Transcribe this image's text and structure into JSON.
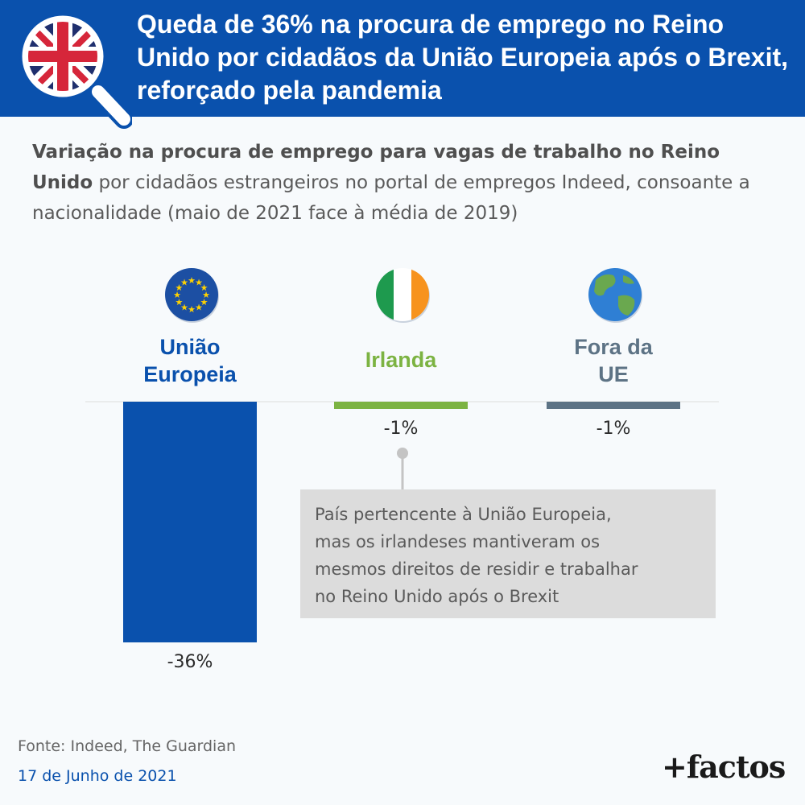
{
  "header": {
    "title": "Queda de 36% na procura de emprego no Reino Unido por cidadãos da União Europeia após o Brexit, reforçado pela pandemia",
    "icon": "uk-flag-magnifier-icon"
  },
  "subtitle": {
    "bold": "Variação na procura de emprego para vagas de trabalho no Reino Unido",
    "rest": " por cidadãos estrangeiros no portal de empregos Indeed, consoante a nacionalidade (maio de 2021 face à média de 2019)"
  },
  "chart_data": {
    "type": "bar",
    "categories": [
      "União Europeia",
      "Irlanda",
      "Fora da UE"
    ],
    "category_lines": [
      [
        "União",
        "Europeia"
      ],
      [
        "Irlanda"
      ],
      [
        "Fora da",
        "UE"
      ]
    ],
    "values": [
      -36,
      -1,
      -1
    ],
    "value_labels": [
      "-36%",
      "-1%",
      "-1%"
    ],
    "colors": [
      "#0a51ad",
      "#7cb342",
      "#5d7385"
    ],
    "icons": [
      "eu-flag-icon",
      "ireland-flag-icon",
      "globe-icon"
    ],
    "ylim": [
      -36,
      0
    ],
    "title": "Variação na procura de emprego para vagas de trabalho no Reino Unido",
    "xlabel": "",
    "ylabel": ""
  },
  "annotation": {
    "lines": [
      "País pertencente à União Europeia,",
      "mas os irlandeses mantiveram os",
      "mesmos direitos de residir e trabalhar",
      "no Reino Unido após o Brexit"
    ]
  },
  "footer": {
    "source": "Fonte: Indeed, The Guardian",
    "date": "17 de Junho de 2021",
    "brand": "+factos"
  }
}
